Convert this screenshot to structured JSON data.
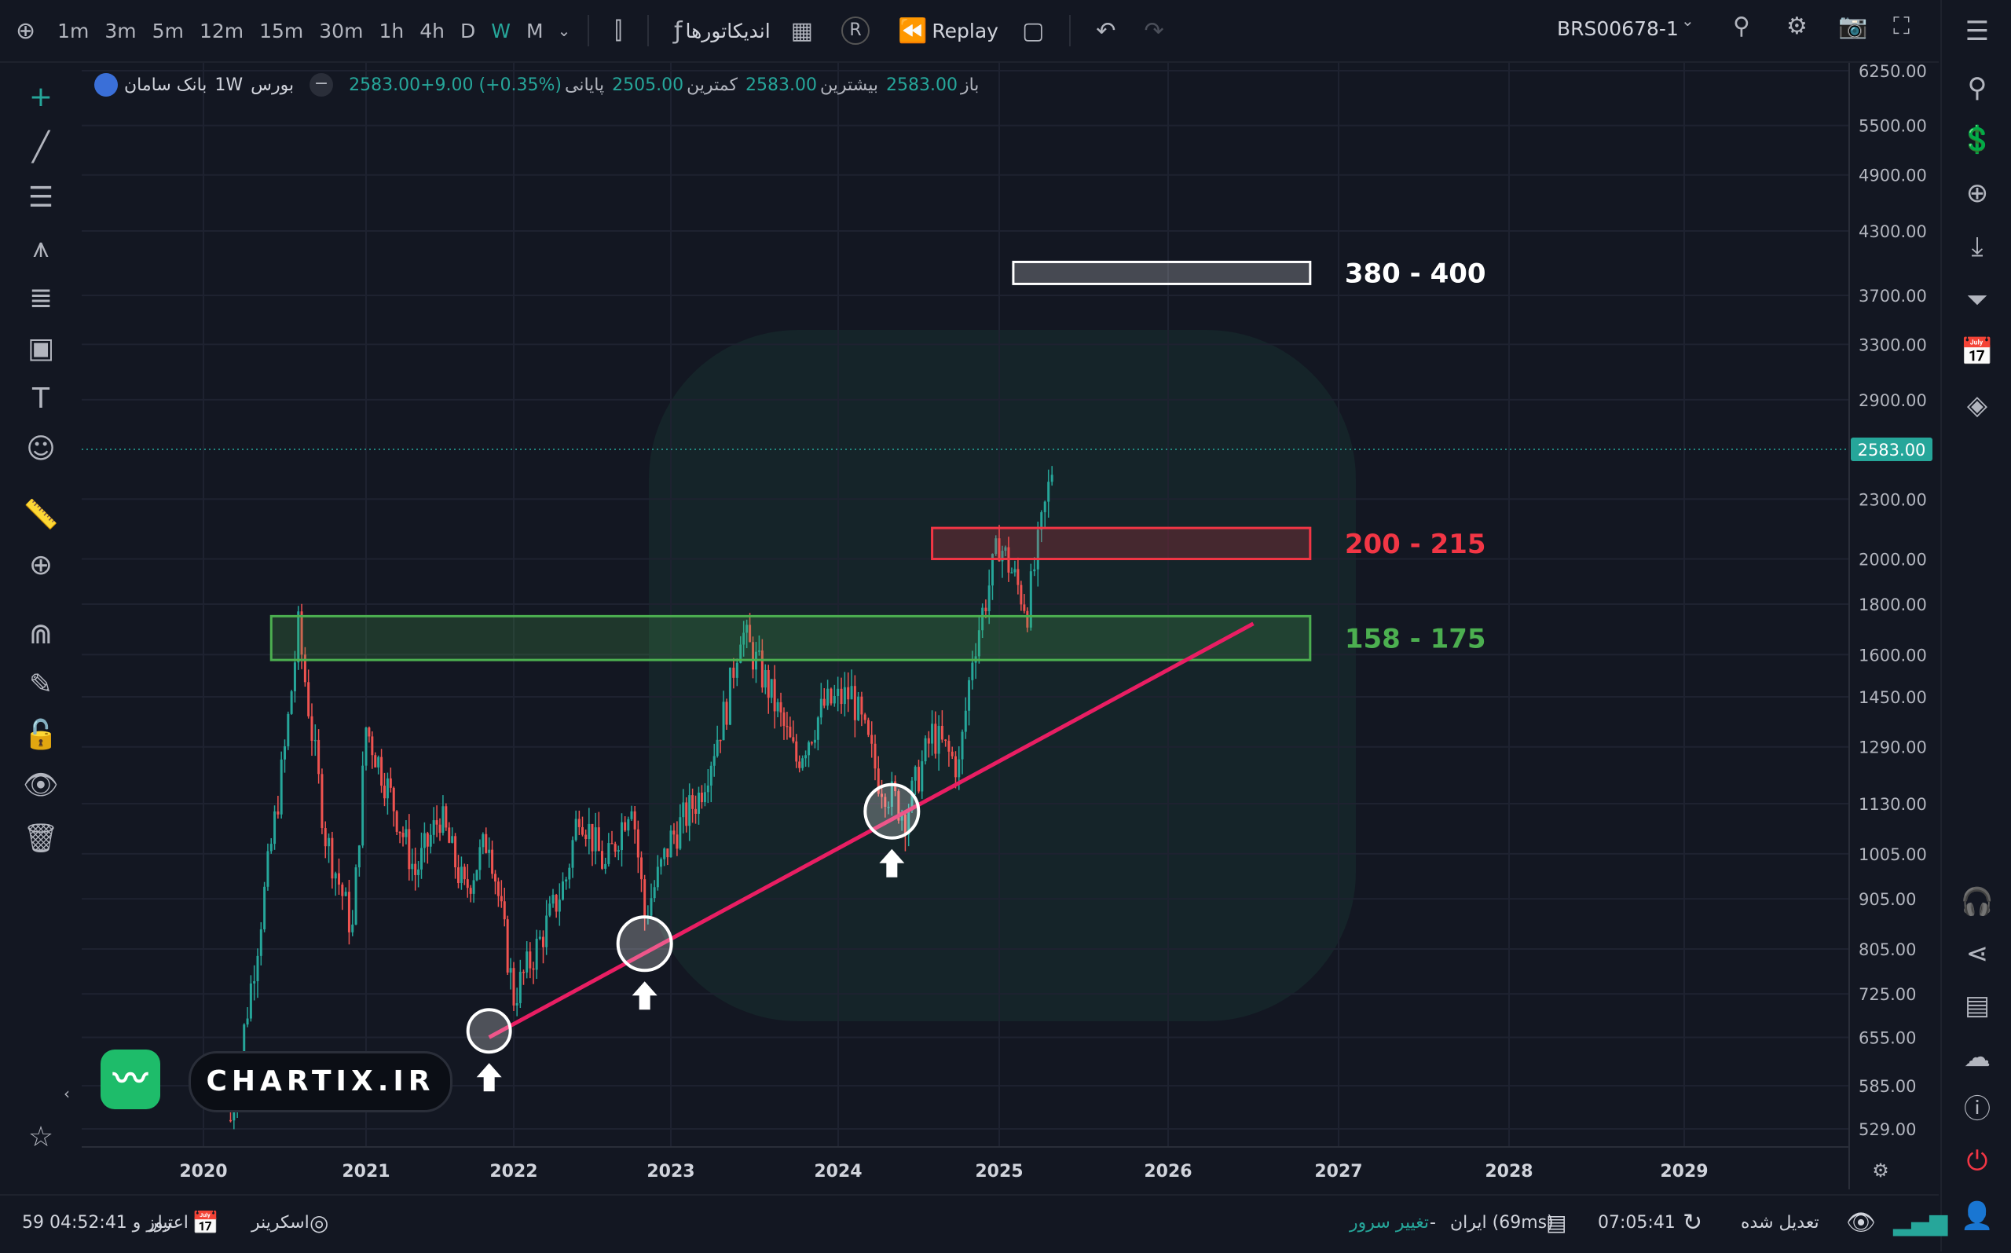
{
  "toolbar": {
    "add_icon": "plus-circle-icon",
    "timeframes": [
      "1m",
      "3m",
      "5m",
      "12m",
      "15m",
      "30m",
      "1h",
      "4h",
      "D",
      "W",
      "M"
    ],
    "active_timeframe": "W",
    "indicators_label": "اندیکاتورها",
    "replay_label": "Replay",
    "symbol": "BRS00678-1"
  },
  "legend": {
    "name": "بانک سامان",
    "interval": "1W",
    "exchange": "بورس",
    "open_label": "باز",
    "open": "2583.00",
    "high_label": "بیشترین",
    "high": "2583.00",
    "low_label": "کمترین",
    "low": "2505.00",
    "close_label": "پایانی",
    "close_change": "2583.00+9.00 (+0.35%)"
  },
  "chart_data": {
    "type": "candlestick",
    "x_ticks": [
      "2020",
      "2021",
      "2022",
      "2023",
      "2024",
      "2025",
      "2026",
      "2027",
      "2028",
      "2029"
    ],
    "y_ticks": [
      "6250.00",
      "5500.00",
      "4900.00",
      "4300.00",
      "3700.00",
      "3300.00",
      "2900.00",
      "2300.00",
      "2000.00",
      "1800.00",
      "1600.00",
      "1450.00",
      "1290.00",
      "1130.00",
      "1005.00",
      "905.00",
      "805.00",
      "725.00",
      "655.00",
      "585.00",
      "529.00"
    ],
    "y_scale": "log",
    "last_price": "2583.00",
    "up_color": "#26a69a",
    "down_color": "#ef5350",
    "series": [
      {
        "date": "2020-03",
        "close": 540
      },
      {
        "date": "2020-05",
        "close": 820
      },
      {
        "date": "2020-07",
        "close": 1280
      },
      {
        "date": "2020-08",
        "close": 1700
      },
      {
        "date": "2020-10",
        "close": 1050
      },
      {
        "date": "2020-12",
        "close": 840
      },
      {
        "date": "2021-01",
        "close": 1350
      },
      {
        "date": "2021-03",
        "close": 1150
      },
      {
        "date": "2021-05",
        "close": 960
      },
      {
        "date": "2021-07",
        "close": 1100
      },
      {
        "date": "2021-09",
        "close": 920
      },
      {
        "date": "2021-11",
        "close": 1050
      },
      {
        "date": "2022-01",
        "close": 720
      },
      {
        "date": "2022-03",
        "close": 820
      },
      {
        "date": "2022-05",
        "close": 950
      },
      {
        "date": "2022-06",
        "close": 1120
      },
      {
        "date": "2022-08",
        "close": 970
      },
      {
        "date": "2022-10",
        "close": 1150
      },
      {
        "date": "2022-11",
        "close": 870
      },
      {
        "date": "2023-01",
        "close": 1040
      },
      {
        "date": "2023-03",
        "close": 1150
      },
      {
        "date": "2023-05",
        "close": 1420
      },
      {
        "date": "2023-06",
        "close": 1700
      },
      {
        "date": "2023-08",
        "close": 1480
      },
      {
        "date": "2023-10",
        "close": 1250
      },
      {
        "date": "2023-12",
        "close": 1420
      },
      {
        "date": "2024-02",
        "close": 1460
      },
      {
        "date": "2024-04",
        "close": 1200
      },
      {
        "date": "2024-06",
        "close": 1100
      },
      {
        "date": "2024-08",
        "close": 1330
      },
      {
        "date": "2024-10",
        "close": 1230
      },
      {
        "date": "2024-11",
        "close": 1600
      },
      {
        "date": "2025-01",
        "close": 2080
      },
      {
        "date": "2025-03",
        "close": 1780
      },
      {
        "date": "2025-04",
        "close": 2150
      },
      {
        "date": "2025-05",
        "close": 2583
      }
    ],
    "zones": [
      {
        "label": "380 - 400",
        "low": 3800,
        "high": 4000,
        "from": "2025-02",
        "to": "2026-11",
        "color": "#ffffff"
      },
      {
        "label": "200 - 215",
        "low": 2000,
        "high": 2150,
        "from": "2024-08",
        "to": "2026-11",
        "color": "#f23645"
      },
      {
        "label": "158 - 175",
        "low": 1580,
        "high": 1750,
        "from": "2020-06",
        "to": "2026-11",
        "color": "#4caf50"
      }
    ],
    "trendline": {
      "from": {
        "date": "2021-11",
        "price": 655
      },
      "to": {
        "date": "2026-07",
        "price": 1720
      },
      "color": "#e91e63"
    },
    "markers": [
      {
        "date": "2021-11",
        "price": 665
      },
      {
        "date": "2022-11",
        "price": 815
      },
      {
        "date": "2024-05",
        "price": 1110
      }
    ]
  },
  "watermark": {
    "logo": "chartix-logo",
    "text": "CHARTIX.IR"
  },
  "bottombar": {
    "credit_label": "اعتبار",
    "credit_value": "59 روز و 04:52:41",
    "screener_label": "اسکرینر",
    "server_change": "تغییر سرور",
    "server_info": "ایران (69ms)",
    "server_sep": "-",
    "time": "07:05:41",
    "adjusted": "تعدیل شده"
  }
}
